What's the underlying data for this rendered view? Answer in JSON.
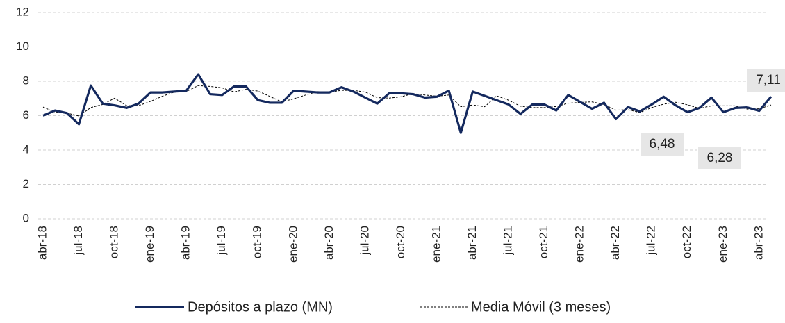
{
  "chart_data": {
    "type": "line",
    "categories": [
      "abr-18",
      null,
      null,
      "jul-18",
      null,
      null,
      "oct-18",
      null,
      null,
      "ene-19",
      null,
      null,
      "abr-19",
      null,
      null,
      "jul-19",
      null,
      null,
      "oct-19",
      null,
      null,
      "ene-20",
      null,
      null,
      "abr-20",
      null,
      null,
      "jul-20",
      null,
      null,
      "oct-20",
      null,
      null,
      "ene-21",
      null,
      null,
      "abr-21",
      null,
      null,
      "jul-21",
      null,
      null,
      "oct-21",
      null,
      null,
      "ene-22",
      null,
      null,
      "abr-22",
      null,
      null,
      "jul-22",
      null,
      null,
      "oct-22",
      null,
      null,
      "ene-23",
      null,
      null,
      "abr-23",
      null
    ],
    "series": [
      {
        "name": "Depósitos a plazo (MN)",
        "color": "#14295e",
        "style": "solid",
        "values": [
          6.0,
          6.3,
          6.15,
          5.5,
          7.75,
          6.7,
          6.6,
          6.45,
          6.7,
          7.35,
          7.35,
          7.4,
          7.45,
          8.4,
          7.25,
          7.2,
          7.7,
          7.7,
          6.9,
          6.75,
          6.75,
          7.45,
          7.4,
          7.35,
          7.35,
          7.65,
          7.4,
          7.05,
          6.7,
          7.3,
          7.3,
          7.25,
          7.05,
          7.1,
          7.45,
          5.0,
          7.4,
          7.15,
          6.9,
          6.65,
          6.1,
          6.65,
          6.65,
          6.3,
          7.2,
          6.8,
          6.4,
          6.75,
          5.8,
          6.5,
          6.25,
          6.65,
          7.1,
          6.6,
          6.2,
          6.45,
          7.05,
          6.2,
          6.45,
          6.48,
          6.28,
          7.11
        ],
        "value_labels": [
          null,
          null,
          null,
          null,
          null,
          null,
          null,
          null,
          null,
          null,
          null,
          null,
          null,
          null,
          null,
          null,
          null,
          null,
          null,
          null,
          null,
          null,
          null,
          null,
          null,
          null,
          null,
          null,
          null,
          null,
          null,
          null,
          null,
          null,
          null,
          null,
          null,
          null,
          null,
          null,
          null,
          null,
          null,
          null,
          null,
          null,
          null,
          null,
          null,
          null,
          null,
          null,
          null,
          null,
          null,
          null,
          null,
          null,
          null,
          "6,48",
          "6,28",
          "7,11"
        ]
      },
      {
        "name": "Media Móvil (3 meses)",
        "color": "#000000",
        "style": "dashed",
        "values": [
          6.5,
          6.2,
          6.15,
          5.98,
          6.47,
          6.65,
          7.02,
          6.58,
          6.58,
          6.83,
          7.13,
          7.37,
          7.4,
          7.75,
          7.7,
          7.62,
          7.38,
          7.53,
          7.43,
          7.12,
          6.8,
          6.98,
          7.2,
          7.4,
          7.37,
          7.47,
          7.47,
          7.37,
          7.05,
          7.02,
          7.1,
          7.28,
          7.2,
          7.13,
          7.2,
          6.52,
          6.62,
          6.52,
          7.15,
          6.9,
          6.55,
          6.47,
          6.47,
          6.53,
          6.72,
          6.77,
          6.8,
          6.65,
          6.32,
          6.35,
          6.18,
          6.47,
          6.67,
          6.78,
          6.63,
          6.42,
          6.57,
          6.57,
          6.57,
          6.38,
          6.4,
          6.62
        ]
      }
    ],
    "ylim": [
      0,
      12
    ],
    "yticks": [
      0,
      2,
      4,
      6,
      8,
      10,
      12
    ],
    "grid": true,
    "legend": "bottom"
  }
}
